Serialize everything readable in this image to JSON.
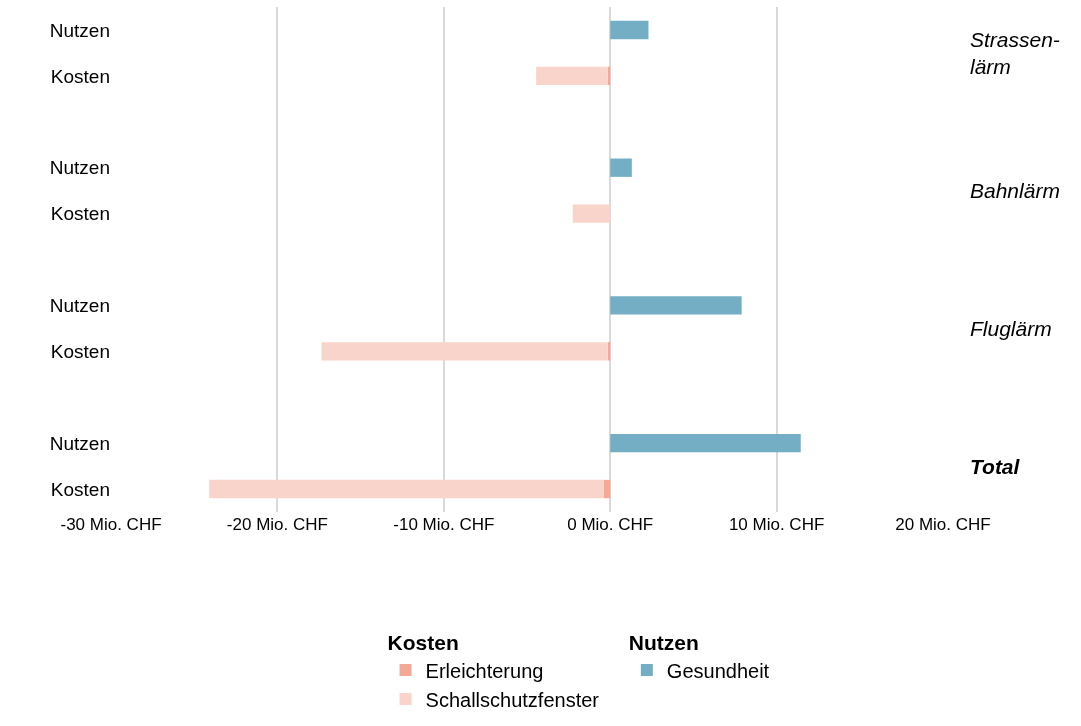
{
  "chart_data": {
    "type": "bar",
    "orientation": "horizontal",
    "stacked": true,
    "categories": [
      "Nutzen",
      "Kosten",
      null,
      "Nutzen",
      "Kosten",
      null,
      "Nutzen",
      "Kosten",
      null,
      "Nutzen",
      "Kosten"
    ],
    "series": [
      {
        "name": "Erleichterung",
        "color": "#f4a898",
        "values": [
          null,
          -0.15,
          null,
          null,
          null,
          null,
          null,
          -0.15,
          null,
          null,
          -0.4
        ]
      },
      {
        "name": "Schallschutzfenster",
        "color": "#f9d4ca",
        "values": [
          null,
          -4.3,
          null,
          null,
          -2.25,
          null,
          null,
          -17.2,
          null,
          null,
          -23.7
        ]
      },
      {
        "name": "Gesundheit",
        "color": "#74aec4",
        "values": [
          2.3,
          null,
          null,
          1.3,
          null,
          null,
          7.9,
          null,
          null,
          11.45,
          null
        ]
      }
    ],
    "xlim": [
      -30,
      20
    ],
    "xticks": [
      {
        "value": -30,
        "label": "-30 Mio. CHF"
      },
      {
        "value": -20,
        "label": "-20 Mio. CHF"
      },
      {
        "value": -10,
        "label": "-10 Mio. CHF"
      },
      {
        "value": 0,
        "label": "0 Mio. CHF"
      },
      {
        "value": 10,
        "label": "10 Mio. CHF"
      },
      {
        "value": 20,
        "label": "20 Mio. CHF"
      }
    ],
    "grid": "x",
    "legend": "bottom",
    "annotations": [
      "Strassen-\nlärm",
      "Bahnlärm",
      "Fluglärm",
      "Total",
      "Kosten",
      "Nutzen"
    ]
  }
}
